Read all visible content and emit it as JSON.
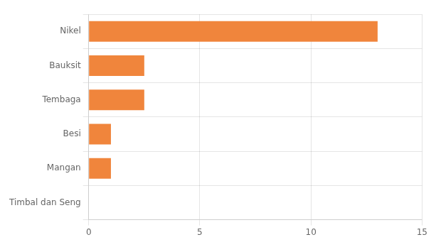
{
  "chart_data": {
    "type": "bar",
    "orientation": "horizontal",
    "categories": [
      "Timbal dan Seng",
      "Mangan",
      "Besi",
      "Tembaga",
      "Bauksit",
      "Nikel"
    ],
    "values": [
      0,
      1,
      1,
      2.5,
      2.5,
      13
    ],
    "color": "#f0853c",
    "xlim": [
      0,
      15
    ],
    "xticks": [
      0,
      5,
      10,
      15
    ],
    "grid": true
  }
}
